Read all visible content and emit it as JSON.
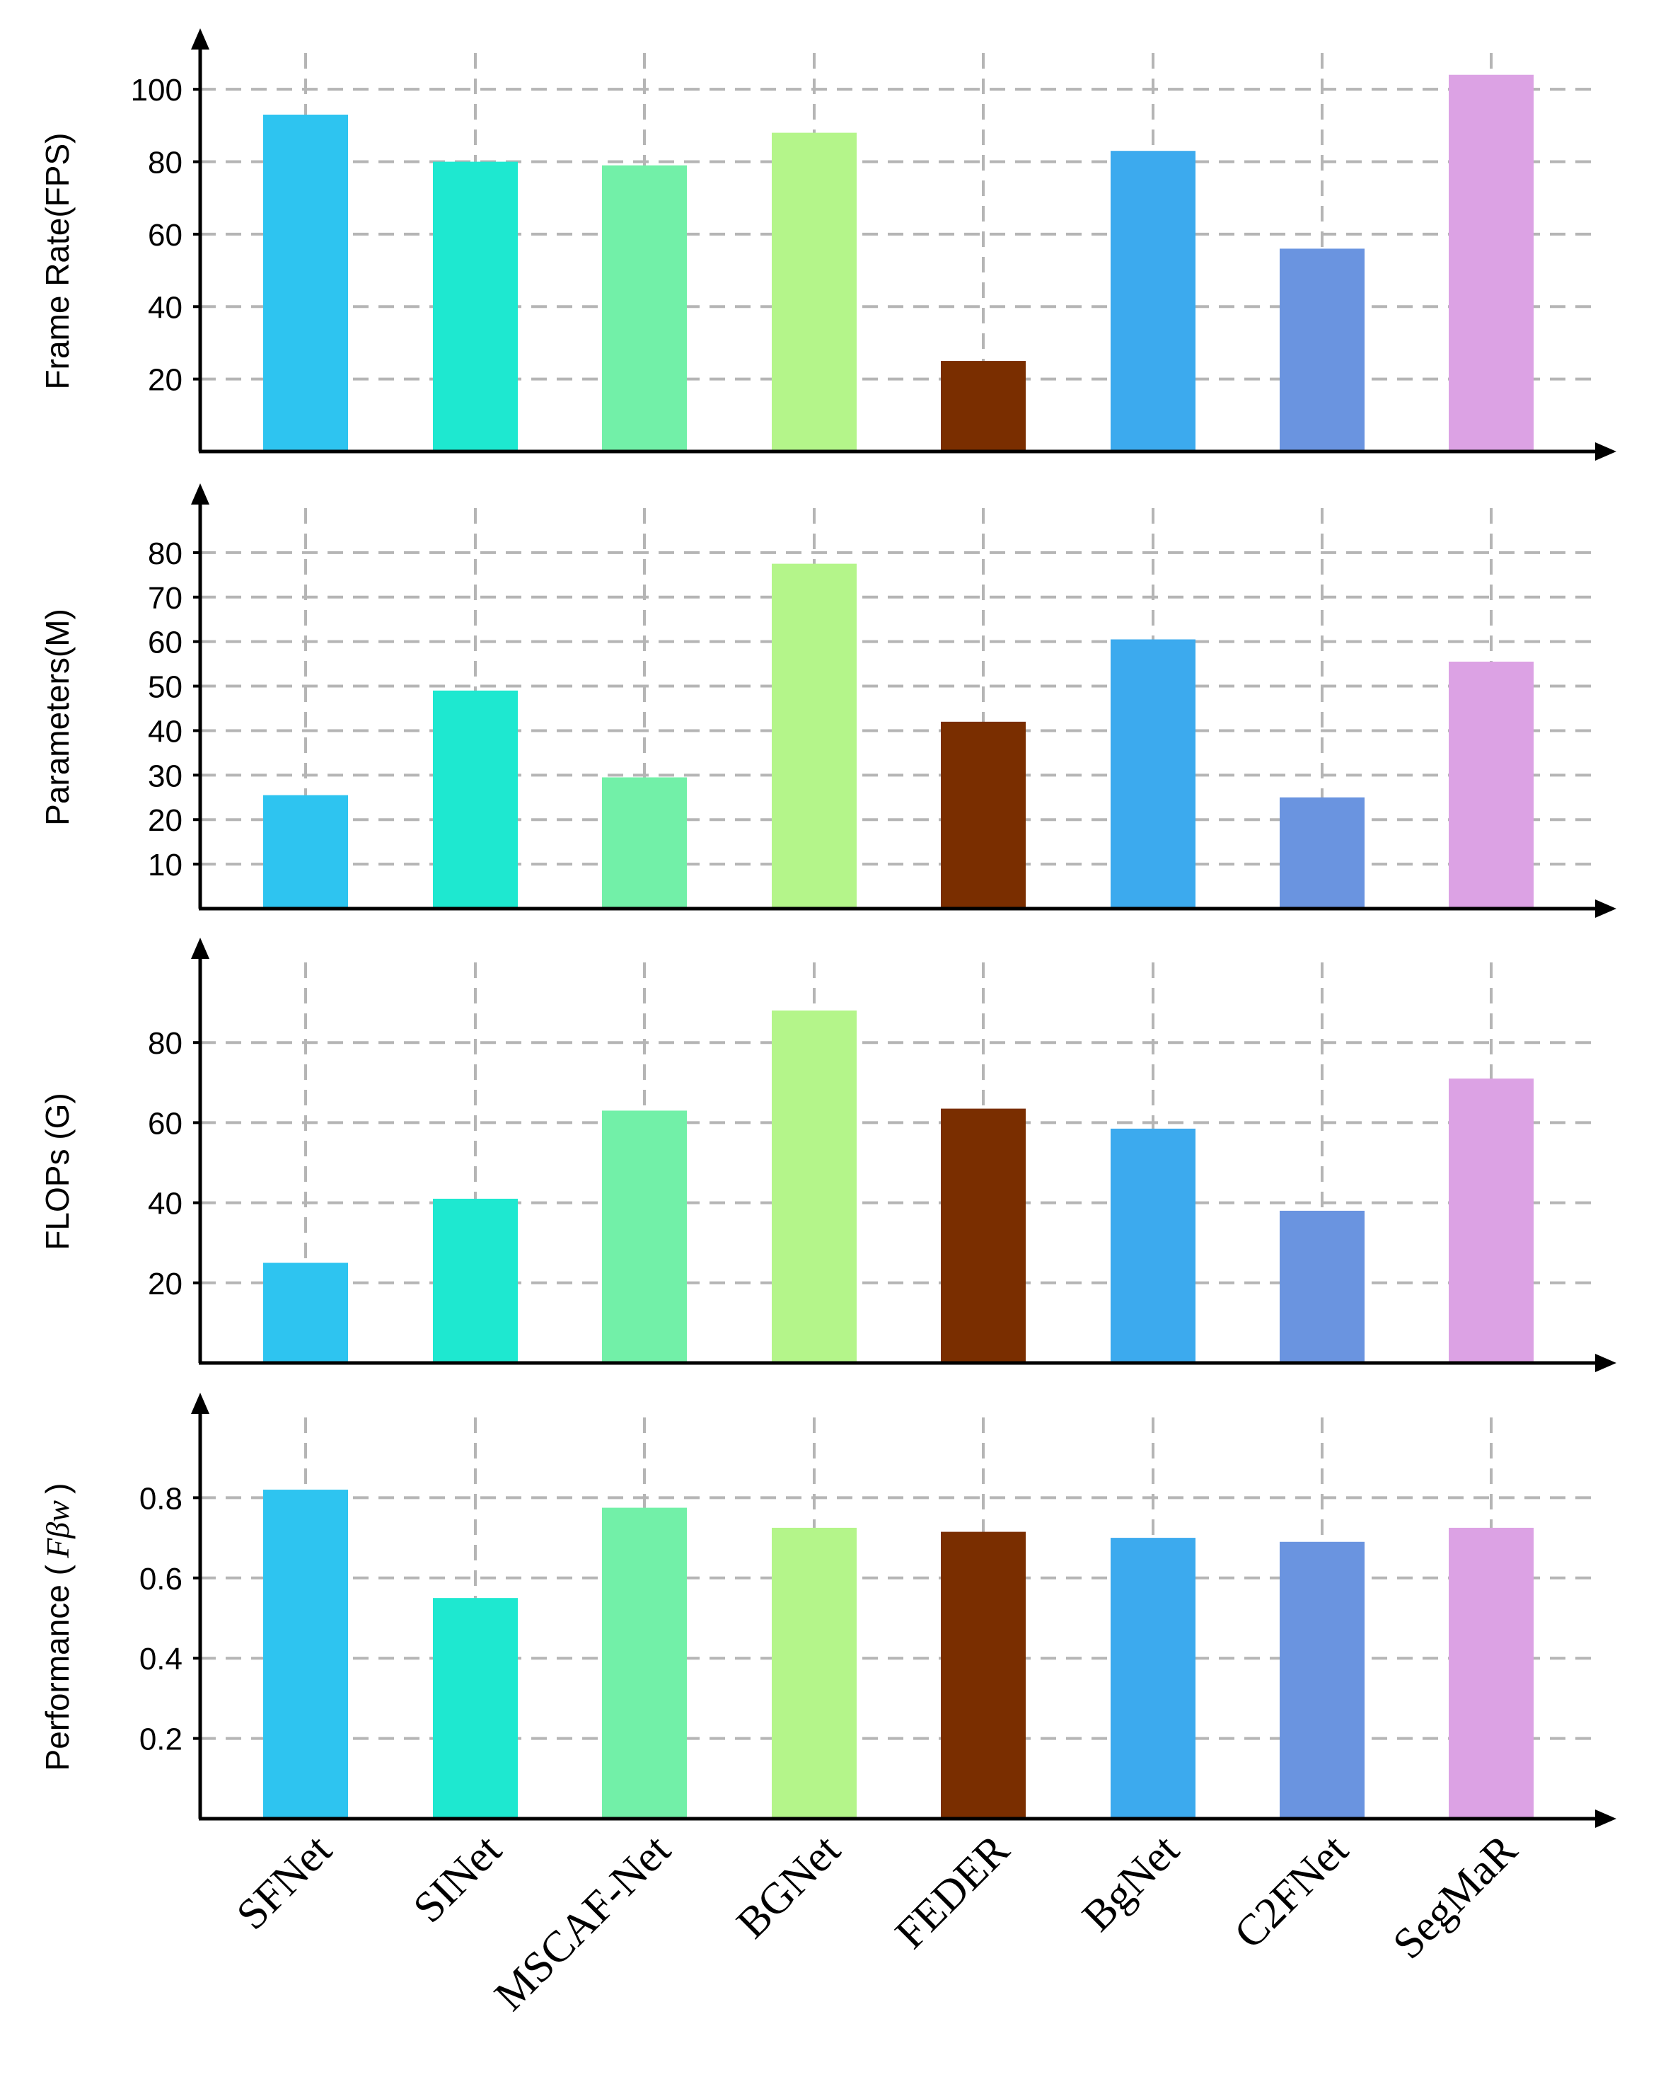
{
  "chart_data": {
    "type": "bar",
    "categories": [
      "SFNet",
      "SINet",
      "MSCAF-Net",
      "BGNet",
      "FEDER",
      "BgNet",
      "C2FNet",
      "SegMaR"
    ],
    "colors": [
      "#2ec4f0",
      "#1ee8d0",
      "#72f0a8",
      "#b4f58a",
      "#7a2e00",
      "#3caaee",
      "#6a94e0",
      "#dca2e4"
    ],
    "panels": [
      {
        "ylabel": "Frame Rate(FPS)",
        "ylim": [
          0,
          110
        ],
        "yticks": [
          20,
          40,
          60,
          80,
          100
        ],
        "tick_labels": [
          "20",
          "40",
          "60",
          "80",
          "100"
        ],
        "values": [
          93,
          80,
          79,
          88,
          25,
          83,
          56,
          104
        ]
      },
      {
        "ylabel": "Parameters(M)",
        "ylim": [
          0,
          90
        ],
        "yticks": [
          10,
          20,
          30,
          40,
          50,
          60,
          70,
          80
        ],
        "tick_labels": [
          "10",
          "20",
          "30",
          "40",
          "50",
          "60",
          "70",
          "80"
        ],
        "values": [
          25.5,
          49,
          29.5,
          77.5,
          42,
          60.5,
          25,
          55.5
        ]
      },
      {
        "ylabel": "FLOPs (G)",
        "ylim": [
          0,
          100
        ],
        "yticks": [
          20,
          40,
          60,
          80
        ],
        "tick_labels": [
          "20",
          "40",
          "60",
          "80"
        ],
        "values": [
          25,
          41,
          63,
          88,
          63.5,
          58.5,
          38,
          71
        ]
      },
      {
        "ylabel": "Performance (",
        "ylabel_symbol": "Fβw",
        "ylabel_close": ")",
        "ylim": [
          0,
          1
        ],
        "yticks": [
          0.2,
          0.4,
          0.6,
          0.8
        ],
        "tick_labels": [
          "0.2",
          "0.4",
          "0.6",
          "0.8"
        ],
        "values": [
          0.82,
          0.55,
          0.775,
          0.725,
          0.715,
          0.7,
          0.69,
          0.725
        ]
      }
    ]
  }
}
